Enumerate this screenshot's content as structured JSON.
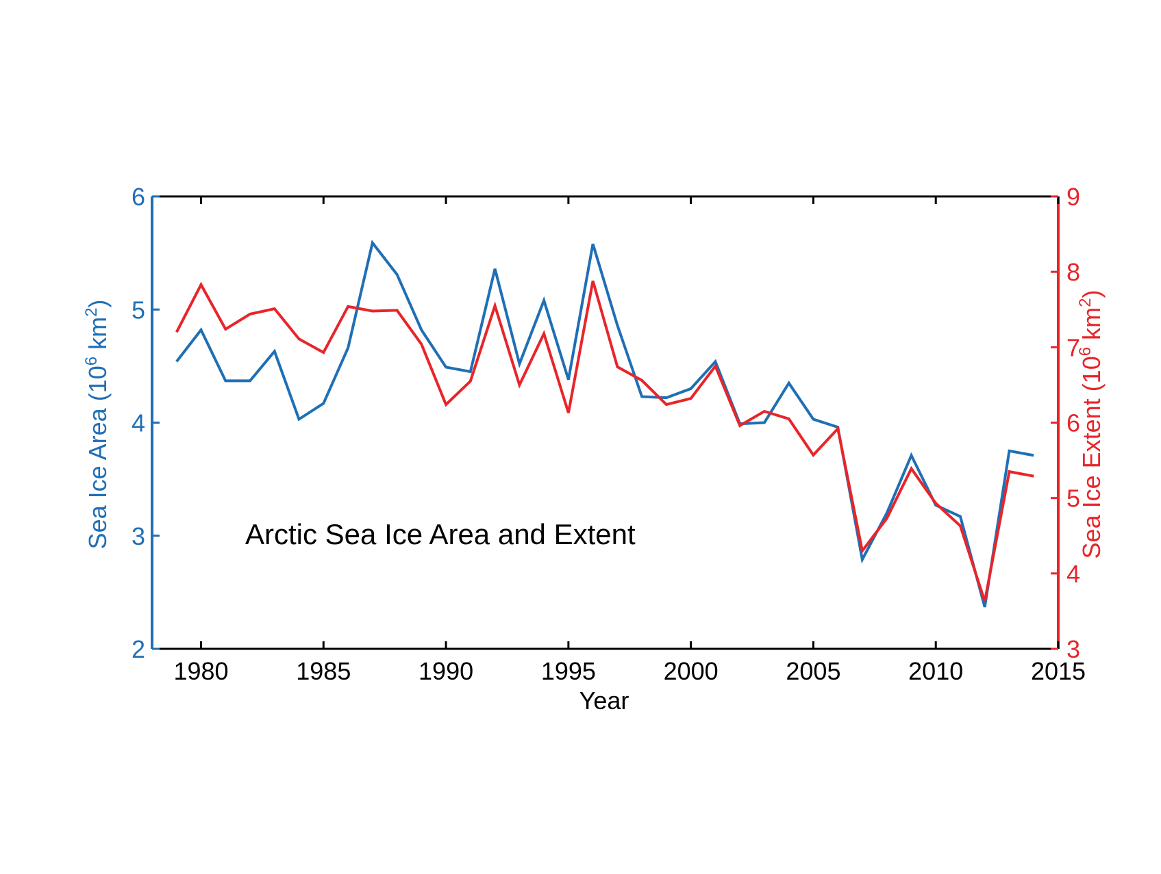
{
  "chart_data": {
    "type": "line",
    "title": "Arctic Sea Ice Area and Extent",
    "xlabel": "Year",
    "ylabel_left": {
      "base": "Sea Ice Area (10",
      "sup1": "6",
      "mid": " km",
      "sup2": "2",
      "end": ")"
    },
    "ylabel_right": {
      "base": "Sea Ice Extent (10",
      "sup1": "6",
      "mid": " km",
      "sup2": "2",
      "end": ")"
    },
    "xlim": [
      1978,
      2015
    ],
    "ylim_left": [
      2,
      6
    ],
    "ylim_right": [
      3,
      9
    ],
    "xticks": [
      "1980",
      "1985",
      "1990",
      "1995",
      "2000",
      "2005",
      "2010",
      "2015"
    ],
    "yticks_left": [
      "2",
      "3",
      "4",
      "5",
      "6"
    ],
    "yticks_right": [
      "3",
      "4",
      "5",
      "6",
      "7",
      "8",
      "9"
    ],
    "grid": false,
    "x": [
      1979,
      1980,
      1981,
      1982,
      1983,
      1984,
      1985,
      1986,
      1987,
      1988,
      1989,
      1990,
      1991,
      1992,
      1993,
      1994,
      1995,
      1996,
      1997,
      1998,
      1999,
      2000,
      2001,
      2002,
      2003,
      2004,
      2005,
      2006,
      2007,
      2008,
      2009,
      2010,
      2011,
      2012,
      2013,
      2014
    ],
    "series": [
      {
        "axis": "left",
        "color": "#1f6fb5",
        "values": [
          4.54,
          4.82,
          4.37,
          4.37,
          4.63,
          4.03,
          4.17,
          4.66,
          5.59,
          5.31,
          4.82,
          4.49,
          4.45,
          5.36,
          4.52,
          5.08,
          4.38,
          5.58,
          4.86,
          4.23,
          4.22,
          4.3,
          4.54,
          3.99,
          4.0,
          4.35,
          4.03,
          3.96,
          2.79,
          3.2,
          3.71,
          3.27,
          3.17,
          2.37,
          3.75,
          3.71
        ]
      },
      {
        "axis": "right",
        "color": "#e8252a",
        "values": [
          7.2,
          7.83,
          7.24,
          7.44,
          7.51,
          7.11,
          6.93,
          7.54,
          7.48,
          7.49,
          7.04,
          6.24,
          6.55,
          7.55,
          6.5,
          7.18,
          6.13,
          7.88,
          6.74,
          6.56,
          6.24,
          6.32,
          6.75,
          5.96,
          6.15,
          6.05,
          5.57,
          5.92,
          4.3,
          4.73,
          5.39,
          4.93,
          4.63,
          3.63,
          5.35,
          5.29
        ]
      }
    ]
  }
}
